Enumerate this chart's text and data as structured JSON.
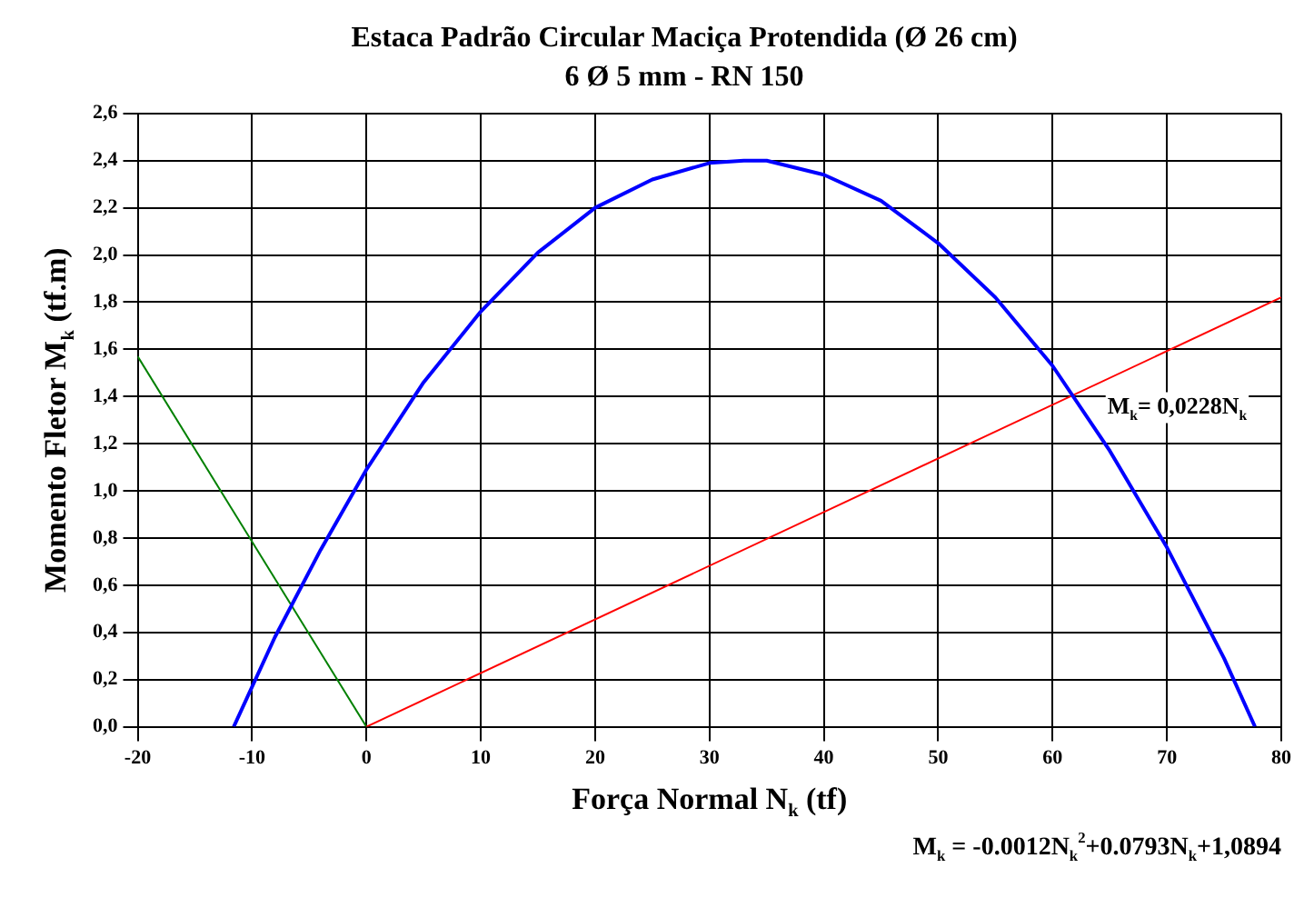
{
  "chart_data": {
    "type": "line",
    "title": "Estaca Padrão Circular Maciça Protendida (Ø 26 cm)",
    "subtitle": "6 Ø 5 mm - RN 150",
    "xlabel": "Força Normal N$_{k}$ (tf)",
    "ylabel": "Momento Fletor M$_{k}$ (tf.m)",
    "series": [
      {
        "color": "#0000ff",
        "x": [
          -11.6,
          -8,
          -4,
          0,
          5,
          10,
          15,
          20,
          25,
          30,
          33,
          35,
          40,
          45,
          50,
          55,
          60,
          65,
          70,
          75,
          77.7
        ],
        "values": [
          0.0,
          0.38,
          0.75,
          1.09,
          1.46,
          1.76,
          2.01,
          2.2,
          2.32,
          2.39,
          2.4,
          2.4,
          2.34,
          2.23,
          2.05,
          1.82,
          1.53,
          1.17,
          0.76,
          0.29,
          0.0
        ]
      },
      {
        "color": "#ff0000",
        "x": [
          0,
          80
        ],
        "values": [
          0,
          1.82
        ]
      },
      {
        "color": "#008000",
        "x": [
          -20,
          0
        ],
        "values": [
          1.57,
          0
        ]
      }
    ],
    "xlim": [
      -20,
      80
    ],
    "xticks": [
      -20,
      -10,
      0,
      10,
      20,
      30,
      40,
      50,
      60,
      70,
      80
    ],
    "ylim": [
      0,
      2.6
    ],
    "yticks": [
      {
        "value": 0,
        "label": "0,0"
      },
      {
        "value": 0.2,
        "label": "0,2"
      },
      {
        "value": 0.4,
        "label": "0,4"
      },
      {
        "value": 0.6,
        "label": "0,6"
      },
      {
        "value": 0.8,
        "label": "0,8"
      },
      {
        "value": 1.0,
        "label": "1,0"
      },
      {
        "value": 1.2,
        "label": "1,2"
      },
      {
        "value": 1.4,
        "label": "1,4"
      },
      {
        "value": 1.6,
        "label": "1,6"
      },
      {
        "value": 1.8,
        "label": "1,8"
      },
      {
        "value": 2.0,
        "label": "2,0"
      },
      {
        "value": 2.2,
        "label": "2,2"
      },
      {
        "value": 2.4,
        "label": "2,4"
      },
      {
        "value": 2.6,
        "label": "2,6"
      }
    ],
    "annotations": [
      "M$_{k}$= 0,0228N$_{k}$",
      "M$_{k}$ = -0.0012N$_{k}$$^{2}$+0.0793N$_{k}$+1,0894"
    ],
    "grid": true,
    "legend": false,
    "marker": "none",
    "line_style": "solid"
  }
}
